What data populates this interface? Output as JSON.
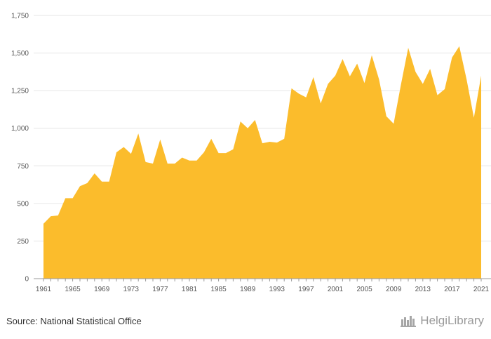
{
  "source_text": "Source: National Statistical Office",
  "brand": {
    "name": "HelgiLibrary",
    "logo_icon": "helgi-library-logo-icon"
  },
  "colors": {
    "area": "#FBBC2C",
    "grid": "#e6e6e6",
    "axis": "#999999",
    "text": "#555555"
  },
  "chart_data": {
    "type": "area",
    "title": "",
    "xlabel": "",
    "ylabel": "",
    "ylim": [
      0,
      1750
    ],
    "yticks": [
      0,
      250,
      500,
      750,
      1000,
      1250,
      1500,
      1750
    ],
    "ytick_labels": [
      "0",
      "250",
      "500",
      "750",
      "1,000",
      "1,250",
      "1,500",
      "1,750"
    ],
    "xticks": [
      1961,
      1965,
      1969,
      1973,
      1977,
      1981,
      1985,
      1989,
      1993,
      1997,
      2001,
      2005,
      2009,
      2013,
      2017,
      2021
    ],
    "grid": true,
    "legend": "none",
    "x": [
      1961,
      1962,
      1963,
      1964,
      1965,
      1966,
      1967,
      1968,
      1969,
      1970,
      1971,
      1972,
      1973,
      1974,
      1975,
      1976,
      1977,
      1978,
      1979,
      1980,
      1981,
      1982,
      1983,
      1984,
      1985,
      1986,
      1987,
      1988,
      1989,
      1990,
      1991,
      1992,
      1993,
      1994,
      1995,
      1996,
      1997,
      1998,
      1999,
      2000,
      2001,
      2002,
      2003,
      2004,
      2005,
      2006,
      2007,
      2008,
      2009,
      2010,
      2011,
      2012,
      2013,
      2014,
      2015,
      2016,
      2017,
      2018,
      2019,
      2020,
      2021
    ],
    "values": [
      365,
      415,
      420,
      535,
      535,
      615,
      635,
      700,
      645,
      645,
      840,
      875,
      830,
      965,
      775,
      765,
      925,
      765,
      765,
      805,
      785,
      785,
      840,
      930,
      835,
      835,
      860,
      1045,
      1000,
      1055,
      900,
      910,
      905,
      930,
      1265,
      1230,
      1205,
      1340,
      1165,
      1295,
      1350,
      1460,
      1345,
      1430,
      1300,
      1485,
      1325,
      1080,
      1030,
      1290,
      1535,
      1375,
      1295,
      1395,
      1220,
      1260,
      1470,
      1545,
      1325,
      1070,
      1350
    ]
  }
}
